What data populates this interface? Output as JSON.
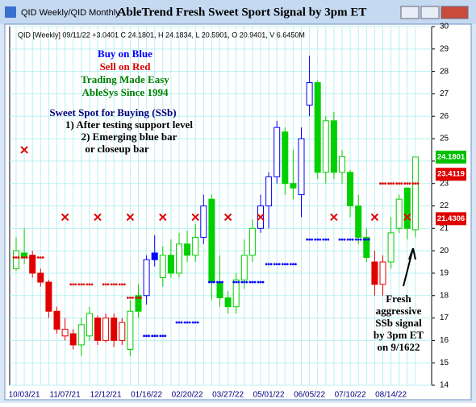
{
  "window_title": "QID Weekly/QID Monthly",
  "chart_data": {
    "type": "candlestick",
    "title": "AbleTrend Fresh Sweet Sport Signal by 3pm ET",
    "header": "QID [Weekly] 09/11/22 +3.0401 C 24.1801, H 24.1834, L 20.5901, O 20.9401, V 6.6450M",
    "categories": [
      null,
      "10/03/21",
      null,
      null,
      null,
      null,
      "11/07/21",
      null,
      null,
      null,
      null,
      "12/12/21",
      null,
      null,
      null,
      null,
      "01/16/22",
      null,
      null,
      null,
      null,
      "02/20/22",
      null,
      null,
      null,
      null,
      "03/27/22",
      null,
      null,
      null,
      null,
      "05/01/22",
      null,
      null,
      null,
      null,
      "06/05/22",
      null,
      null,
      null,
      null,
      "07/10/22",
      null,
      null,
      null,
      null,
      "08/14/22",
      null,
      null,
      null
    ],
    "open": [
      19.2,
      19.7,
      19.8,
      19.0,
      18.6,
      17.3,
      16.5,
      16.3,
      15.8,
      16.2,
      17.0,
      16.0,
      17.0,
      16.0,
      15.6,
      17.3,
      18.0,
      19.6,
      18.8,
      19.8,
      19.0,
      20.3,
      19.8,
      20.6,
      22.3,
      18.6,
      17.9,
      17.5,
      18.7,
      19.8,
      21.0,
      22.0,
      23.3,
      25.3,
      23.0,
      22.5,
      26.5,
      27.5,
      23.5,
      25.8,
      23.5,
      23.5,
      22.0,
      20.6,
      19.5,
      18.5,
      19.5,
      21.0,
      21.0,
      20.94
    ],
    "high": [
      20.6,
      21.0,
      20.0,
      19.2,
      18.7,
      17.5,
      17.0,
      16.5,
      17.0,
      17.5,
      17.1,
      17.2,
      17.2,
      17.0,
      17.8,
      18.5,
      19.8,
      20.7,
      20.2,
      20.5,
      20.8,
      20.9,
      21.2,
      22.5,
      22.5,
      19.8,
      18.2,
      19.0,
      20.5,
      21.4,
      22.5,
      23.5,
      25.8,
      25.5,
      24.5,
      25.5,
      28.7,
      27.6,
      26.0,
      26.2,
      24.5,
      23.6,
      22.5,
      21.0,
      20.0,
      19.8,
      21.5,
      22.5,
      22.8,
      24.18
    ],
    "low": [
      19.1,
      19.4,
      18.8,
      18.4,
      17.0,
      16.3,
      16.0,
      15.6,
      15.3,
      16.0,
      15.8,
      15.9,
      15.7,
      15.8,
      15.3,
      17.0,
      17.6,
      19.3,
      18.4,
      18.8,
      18.8,
      19.5,
      19.5,
      20.3,
      17.8,
      17.5,
      17.2,
      17.2,
      18.3,
      19.5,
      20.8,
      21.0,
      23.0,
      22.5,
      22.3,
      21.5,
      26.0,
      23.2,
      23.0,
      23.2,
      23.0,
      21.5,
      20.3,
      19.5,
      18.0,
      18.0,
      19.2,
      20.8,
      20.5,
      20.59
    ],
    "close": [
      20.0,
      19.9,
      19.0,
      18.6,
      17.3,
      16.5,
      16.2,
      15.8,
      16.7,
      17.2,
      16.0,
      17.0,
      16.0,
      16.8,
      17.3,
      18.0,
      19.6,
      19.9,
      19.8,
      19.0,
      20.3,
      19.8,
      20.6,
      22.0,
      18.6,
      17.9,
      17.5,
      18.7,
      19.8,
      21.0,
      22.0,
      23.3,
      25.5,
      23.0,
      22.8,
      25.0,
      27.5,
      23.5,
      25.8,
      23.5,
      24.2,
      22.0,
      20.6,
      19.7,
      18.5,
      19.5,
      20.8,
      22.3,
      22.8,
      24.18
    ],
    "colors": [
      "#00d000",
      "#00d000",
      "#e00000",
      "#e00000",
      "#e00000",
      "#e00000",
      "#e00000",
      "#e00000",
      "#00d000",
      "#00d000",
      "#e00000",
      "#e00000",
      "#e00000",
      "#e00000",
      "#00d000",
      "#00d000",
      "#0000ff",
      "#0000ff",
      "#00d000",
      "#00d000",
      "#00d000",
      "#00d000",
      "#00d000",
      "#0000ff",
      "#00d000",
      "#00d000",
      "#00d000",
      "#00d000",
      "#00d000",
      "#00d000",
      "#0000ff",
      "#0000ff",
      "#0000ff",
      "#00d000",
      "#00d000",
      "#0000ff",
      "#0000ff",
      "#00d000",
      "#00d000",
      "#00d000",
      "#00d000",
      "#00d000",
      "#00d000",
      "#00d000",
      "#e00000",
      "#e00000",
      "#00d000",
      "#00d000",
      "#00d000",
      "#00d000"
    ],
    "hollow": [
      true,
      false,
      false,
      false,
      false,
      false,
      true,
      false,
      true,
      true,
      false,
      true,
      false,
      true,
      true,
      false,
      true,
      false,
      true,
      false,
      true,
      false,
      true,
      true,
      false,
      false,
      false,
      true,
      true,
      true,
      true,
      true,
      true,
      false,
      false,
      true,
      true,
      false,
      true,
      false,
      true,
      false,
      false,
      false,
      false,
      true,
      true,
      true,
      false,
      true
    ],
    "support": {
      "color": "#0000ff",
      "values": [
        null,
        null,
        null,
        null,
        null,
        null,
        null,
        null,
        null,
        null,
        null,
        null,
        null,
        null,
        null,
        null,
        16.2,
        16.2,
        16.2,
        null,
        16.8,
        16.8,
        16.8,
        null,
        18.6,
        18.6,
        null,
        18.6,
        18.6,
        18.6,
        18.6,
        19.4,
        19.4,
        19.4,
        19.4,
        null,
        20.5,
        20.5,
        20.5,
        null,
        20.5,
        20.5,
        20.5,
        20.5,
        null,
        null,
        null,
        null,
        null,
        null
      ]
    },
    "resistance": {
      "color": "#e00000",
      "values": [
        19.7,
        19.7,
        19.7,
        19.7,
        null,
        null,
        null,
        18.5,
        18.5,
        18.5,
        null,
        18.5,
        18.5,
        18.5,
        17.9,
        17.9,
        null,
        null,
        null,
        null,
        null,
        null,
        null,
        null,
        null,
        null,
        null,
        null,
        null,
        null,
        null,
        null,
        null,
        null,
        null,
        null,
        null,
        null,
        null,
        null,
        null,
        null,
        null,
        null,
        null,
        23.0,
        23.0,
        23.0,
        23.0,
        23.0
      ]
    },
    "signals": {
      "color": "#e00000",
      "values": [
        null,
        24.5,
        null,
        null,
        null,
        null,
        21.5,
        null,
        null,
        null,
        21.5,
        null,
        null,
        null,
        21.5,
        null,
        null,
        null,
        21.5,
        null,
        null,
        null,
        21.5,
        null,
        null,
        null,
        21.5,
        null,
        null,
        null,
        21.5,
        null,
        null,
        null,
        null,
        null,
        null,
        null,
        null,
        21.5,
        null,
        null,
        null,
        null,
        21.5,
        null,
        null,
        null,
        21.5,
        null
      ]
    },
    "price_labels": [
      {
        "value": 24.1801,
        "color": "#00c000"
      },
      {
        "value": 23.4119,
        "color": "#e00000"
      },
      {
        "value": 21.4306,
        "color": "#e00000"
      }
    ],
    "ylim": [
      14,
      30
    ],
    "yticks": [
      14,
      15,
      16,
      17,
      18,
      19,
      20,
      21,
      22,
      23,
      24,
      25,
      26,
      27,
      28,
      29,
      30
    ],
    "grid": true,
    "legend_lines": [
      {
        "text": "Buy on Blue",
        "color": "#0000ff"
      },
      {
        "text": "Sell on Red",
        "color": "#e00000"
      },
      {
        "text": "Trading Made Easy",
        "color": "#008000"
      },
      {
        "text": "AbleSys Since 1994",
        "color": "#008000"
      }
    ],
    "notes": [
      {
        "text": "Sweet Spot for Buying (SSb)",
        "color": "#000080"
      },
      {
        "text": "1) After testing support level",
        "color": "#000000"
      },
      {
        "text": "2) Emerging blue bar",
        "color": "#000000"
      },
      {
        "text": "or closeup bar",
        "color": "#000000"
      }
    ],
    "callout": [
      "Fresh",
      "aggressive",
      "SSb signal",
      "by 3pm ET",
      "on 9/1622"
    ]
  }
}
